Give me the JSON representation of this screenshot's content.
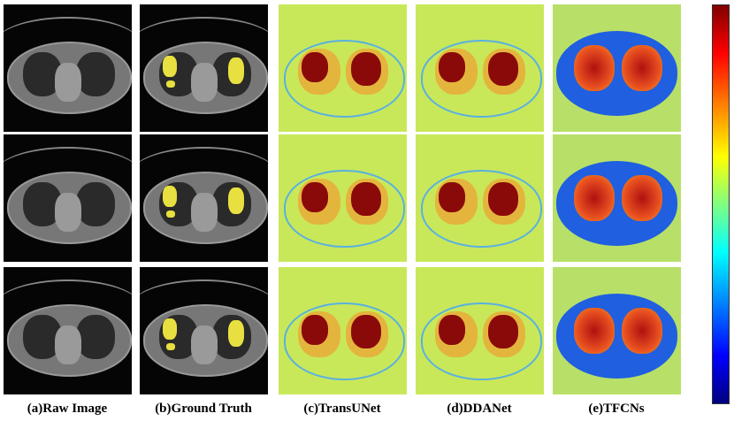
{
  "columns": [
    {
      "label": "(a)Raw Image",
      "kind": "ct"
    },
    {
      "label": "(b)Ground Truth",
      "kind": "gt"
    },
    {
      "label": "(c)TransUNet",
      "kind": "hm"
    },
    {
      "label": "(d)DDANet",
      "kind": "hm2"
    },
    {
      "label": "(e)TFCNs",
      "kind": "tf"
    }
  ],
  "rows": 3,
  "colors": {
    "lesion": "#e8e040",
    "heat_high": "#8a0a0a",
    "heat_bg": "#c8e85a",
    "tf_body": "#1f5fe0"
  },
  "colorbar": {
    "from": "#800000",
    "to": "#000080"
  }
}
